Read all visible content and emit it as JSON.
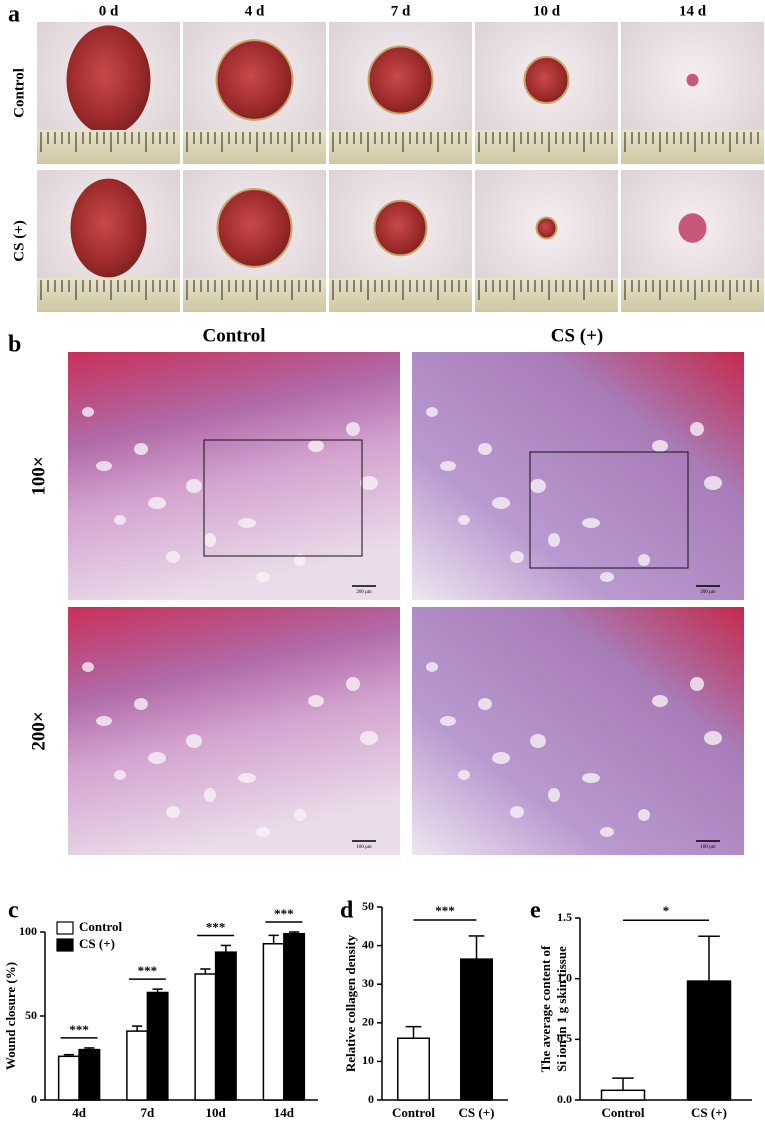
{
  "figure": {
    "panel_labels": [
      "a",
      "b",
      "c",
      "d",
      "e"
    ],
    "a": {
      "columns": [
        "0 d",
        "4 d",
        "7 d",
        "10 d",
        "14 d"
      ],
      "rows": [
        "Control",
        "CS (+)"
      ]
    },
    "b": {
      "columns": [
        "Control",
        "CS (+)"
      ],
      "rows": [
        "100×",
        "200×"
      ],
      "scale_bars": [
        "200 μm",
        "200 μm",
        "100 μm",
        "100 μm"
      ]
    }
  },
  "chart_data": [
    {
      "type": "bar",
      "y_label": "Wound closure (%)",
      "categories": [
        "4d",
        "7d",
        "10d",
        "14d"
      ],
      "series": [
        {
          "name": "Control",
          "color": "#ffffff",
          "values": [
            26,
            41,
            75,
            93
          ],
          "errors": [
            1,
            3,
            3,
            5
          ]
        },
        {
          "name": "CS (+)",
          "color": "#000000",
          "values": [
            30,
            64,
            88,
            99
          ],
          "errors": [
            1,
            2,
            4,
            1
          ]
        }
      ],
      "ylim": [
        0,
        100
      ],
      "yticks": [
        0,
        50,
        100
      ],
      "legend": "top-left",
      "annotations": [
        "***",
        "***",
        "***",
        "***"
      ]
    },
    {
      "type": "bar",
      "y_label": "Relative collagen density",
      "categories": [
        "Control",
        "CS (+)"
      ],
      "values": [
        16,
        36.5
      ],
      "errors": [
        3,
        6
      ],
      "colors": [
        "#ffffff",
        "#000000"
      ],
      "ylim": [
        0,
        50
      ],
      "yticks": [
        0,
        10,
        20,
        30,
        40,
        50
      ],
      "annotations": [
        "***"
      ]
    },
    {
      "type": "bar",
      "y_label": [
        "The average content of",
        "Si ion in 1 g skin tissue"
      ],
      "categories": [
        "Control",
        "CS (+)"
      ],
      "values": [
        0.08,
        0.98
      ],
      "errors": [
        0.1,
        0.37
      ],
      "colors": [
        "#ffffff",
        "#000000"
      ],
      "ylim": [
        0,
        1.5
      ],
      "yticks": [
        {
          "value": 0,
          "label": "0.0"
        },
        0.5,
        {
          "value": 1,
          "label": "1.0"
        },
        1.5
      ],
      "annotations": [
        "*"
      ]
    }
  ]
}
